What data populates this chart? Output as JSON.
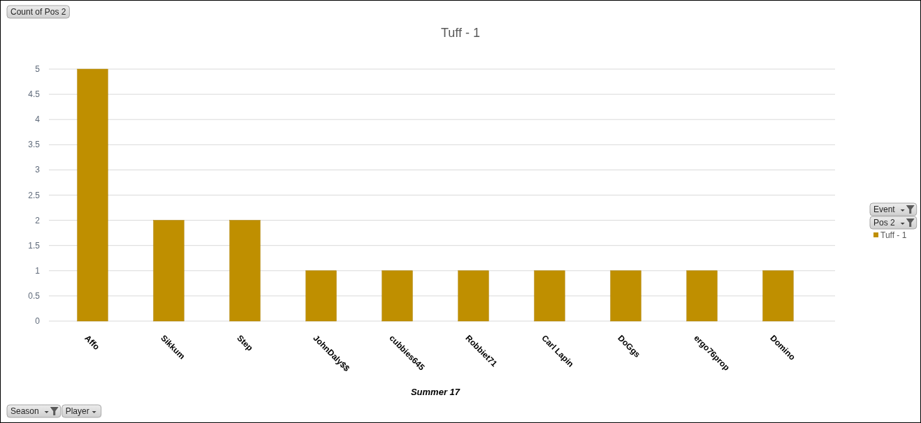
{
  "chart_data": {
    "type": "bar",
    "title": "Tuff - 1",
    "xlabel": "Summer 17",
    "categories": [
      "Affo",
      "Sikkum",
      "Step",
      "JohnDaly$$",
      "cubbies645",
      "Robbiet71",
      "Carl Lapin",
      "DoGgs",
      "ergo76prop",
      "Domino"
    ],
    "series": [
      {
        "name": "Tuff - 1",
        "color": "#bf8f00",
        "values": [
          5,
          2,
          2,
          1,
          1,
          1,
          1,
          1,
          1,
          1
        ]
      }
    ],
    "ylim": [
      0,
      5
    ],
    "yticks": [
      0,
      0.5,
      1,
      1.5,
      2,
      2.5,
      3,
      3.5,
      4,
      4.5,
      5
    ],
    "grid": "y",
    "legend": "right",
    "annotations": [
      "Count of Pos 2",
      "Event",
      "Pos 2",
      "Season",
      "Player"
    ]
  }
}
